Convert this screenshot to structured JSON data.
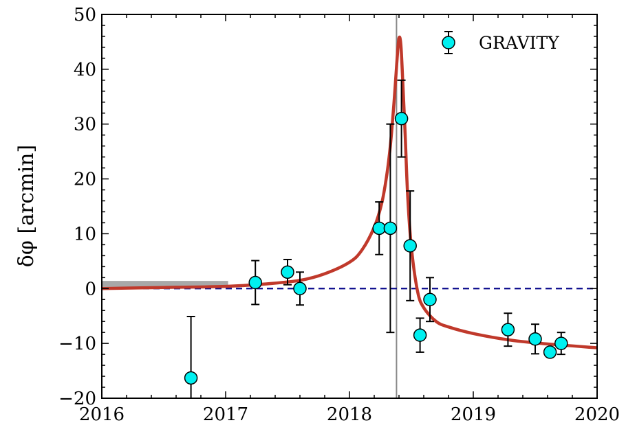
{
  "chart_data": {
    "type": "scatter",
    "ylabel": "δφ [arcmin]",
    "xlabel": "",
    "xlim": [
      2016,
      2020
    ],
    "ylim": [
      -20,
      50
    ],
    "x_ticks": [
      2016,
      2017,
      2018,
      2019,
      2020
    ],
    "x_tick_labels": [
      "2016",
      "2017",
      "2018",
      "2019",
      "2020"
    ],
    "y_ticks": [
      -20,
      -10,
      0,
      10,
      20,
      30,
      40,
      50
    ],
    "y_tick_labels": [
      "−20",
      "−10",
      "0",
      "10",
      "20",
      "30",
      "40",
      "50"
    ],
    "legend": {
      "label": "GRAVITY",
      "position": "top-right"
    },
    "colors": {
      "points": "#00f0f0",
      "model": "#c0392b",
      "zero_line": "#0a0a8c",
      "vline": "#888888",
      "band": "#a8a8a8"
    },
    "series": [
      {
        "name": "GRAVITY",
        "points": [
          {
            "x": 2016.72,
            "y": -16.3,
            "err_low": 11.2,
            "err_high": 11.2
          },
          {
            "x": 2017.24,
            "y": 1.1,
            "err_low": 4.0,
            "err_high": 4.0
          },
          {
            "x": 2017.5,
            "y": 3.0,
            "err_low": 2.3,
            "err_high": 2.3
          },
          {
            "x": 2017.6,
            "y": 0.0,
            "err_low": 3.0,
            "err_high": 3.0
          },
          {
            "x": 2018.24,
            "y": 11.0,
            "err_low": 4.8,
            "err_high": 4.8
          },
          {
            "x": 2018.33,
            "y": 11.0,
            "err_low": 19.0,
            "err_high": 19.0
          },
          {
            "x": 2018.42,
            "y": 31.0,
            "err_low": 7.0,
            "err_high": 7.0
          },
          {
            "x": 2018.49,
            "y": 7.8,
            "err_low": 10.0,
            "err_high": 10.0
          },
          {
            "x": 2018.57,
            "y": -8.5,
            "err_low": 3.1,
            "err_high": 3.1
          },
          {
            "x": 2018.65,
            "y": -2.0,
            "err_low": 4.0,
            "err_high": 4.0
          },
          {
            "x": 2019.28,
            "y": -7.5,
            "err_low": 3.0,
            "err_high": 3.0
          },
          {
            "x": 2019.5,
            "y": -9.2,
            "err_low": 2.7,
            "err_high": 2.7
          },
          {
            "x": 2019.62,
            "y": -11.6,
            "err_low": 0.6,
            "err_high": 0.6
          },
          {
            "x": 2019.71,
            "y": -10.0,
            "err_low": 2.0,
            "err_high": 2.0
          }
        ]
      }
    ],
    "model_curve": {
      "x": [
        2016.0,
        2016.5,
        2017.0,
        2017.3,
        2017.6,
        2017.8,
        2018.0,
        2018.1,
        2018.2,
        2018.26,
        2018.3,
        2018.33,
        2018.36,
        2018.385,
        2018.4,
        2018.415,
        2018.43,
        2018.45,
        2018.47,
        2018.5,
        2018.55,
        2018.6,
        2018.7,
        2018.8,
        2019.0,
        2019.3,
        2019.6,
        2020.0
      ],
      "y": [
        0.0,
        0.2,
        0.4,
        0.8,
        1.5,
        2.7,
        4.8,
        7.0,
        11.2,
        15.5,
        20.5,
        26.0,
        34.0,
        42.0,
        45.7,
        44.5,
        38.0,
        28.0,
        17.0,
        7.5,
        -0.5,
        -3.5,
        -6.0,
        -7.0,
        -8.2,
        -9.4,
        -10.1,
        -10.8
      ]
    },
    "vertical_line_x": 2018.38,
    "zero_line_y": 0,
    "band": {
      "x_start": 2016.0,
      "x_end": 2017.02,
      "y_low": 0.3,
      "y_high": 1.4
    }
  }
}
